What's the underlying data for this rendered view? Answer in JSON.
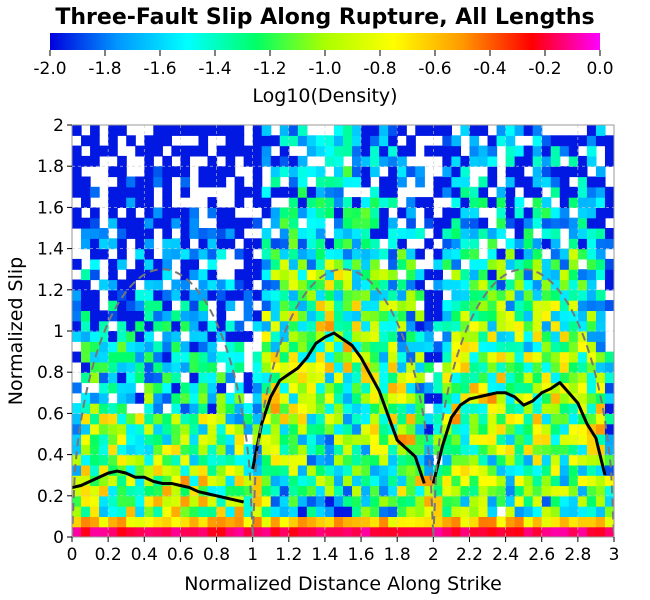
{
  "chart_data": {
    "type": "heatmap",
    "title": "Three-Fault Slip Along Rupture, All Lengths",
    "xlabel": "Normalized Distance Along Strike",
    "ylabel": "Normalized Slip",
    "colorbar": {
      "label": "Log10(Density)",
      "range": [
        -2.0,
        0.0
      ],
      "ticks": [
        "-2.0",
        "-1.8",
        "-1.6",
        "-1.4",
        "-1.2",
        "-1.0",
        "-0.8",
        "-0.6",
        "-0.4",
        "-0.2",
        "0.0"
      ],
      "colors": [
        "#0000dd",
        "#0099ff",
        "#00ffff",
        "#00ff66",
        "#aaff00",
        "#ffff00",
        "#ff9900",
        "#ff0000",
        "#ff00ff"
      ]
    },
    "xlim": [
      0,
      3
    ],
    "ylim": [
      0,
      2
    ],
    "xticks": [
      "0",
      "0.2",
      "0.4",
      "0.6",
      "0.8",
      "1",
      "1.2",
      "1.4",
      "1.6",
      "1.8",
      "2",
      "2.2",
      "2.4",
      "2.6",
      "2.8",
      "3"
    ],
    "yticks": [
      "0",
      "0.2",
      "0.4",
      "0.6",
      "0.8",
      "1",
      "1.2",
      "1.4",
      "1.6",
      "1.8",
      "2"
    ],
    "grid": true,
    "series": [
      {
        "style": "solid-black",
        "x": [
          0.0,
          0.05,
          0.1,
          0.15,
          0.2,
          0.25,
          0.3,
          0.35,
          0.4,
          0.45,
          0.5,
          0.55,
          0.6,
          0.65,
          0.7,
          0.75,
          0.8,
          0.85,
          0.9,
          0.95
        ],
        "y": [
          0.24,
          0.25,
          0.27,
          0.29,
          0.31,
          0.32,
          0.31,
          0.29,
          0.29,
          0.27,
          0.26,
          0.26,
          0.25,
          0.24,
          0.22,
          0.21,
          0.2,
          0.19,
          0.18,
          0.17
        ]
      },
      {
        "style": "solid-black",
        "x": [
          1.0,
          1.05,
          1.1,
          1.15,
          1.2,
          1.25,
          1.3,
          1.35,
          1.4,
          1.45,
          1.5,
          1.55,
          1.6,
          1.65,
          1.7,
          1.75,
          1.8,
          1.85,
          1.9,
          1.95
        ],
        "y": [
          0.33,
          0.55,
          0.68,
          0.76,
          0.79,
          0.82,
          0.87,
          0.94,
          0.97,
          0.99,
          0.96,
          0.93,
          0.87,
          0.79,
          0.71,
          0.59,
          0.47,
          0.43,
          0.39,
          0.26
        ]
      },
      {
        "style": "solid-black",
        "x": [
          2.0,
          2.05,
          2.1,
          2.15,
          2.2,
          2.25,
          2.3,
          2.35,
          2.4,
          2.45,
          2.5,
          2.55,
          2.6,
          2.65,
          2.7,
          2.75,
          2.8,
          2.85,
          2.9,
          2.95
        ],
        "y": [
          0.26,
          0.44,
          0.58,
          0.64,
          0.67,
          0.68,
          0.69,
          0.7,
          0.7,
          0.68,
          0.64,
          0.66,
          0.7,
          0.72,
          0.75,
          0.7,
          0.65,
          0.55,
          0.48,
          0.3
        ]
      },
      {
        "style": "dashed-gray",
        "segments": [
          {
            "x0": 0.0,
            "x1": 1.0,
            "peak": 1.3
          },
          {
            "x0": 1.0,
            "x1": 2.0,
            "peak": 1.3
          },
          {
            "x0": 2.0,
            "x1": 3.0,
            "peak": 1.3
          }
        ]
      }
    ]
  }
}
